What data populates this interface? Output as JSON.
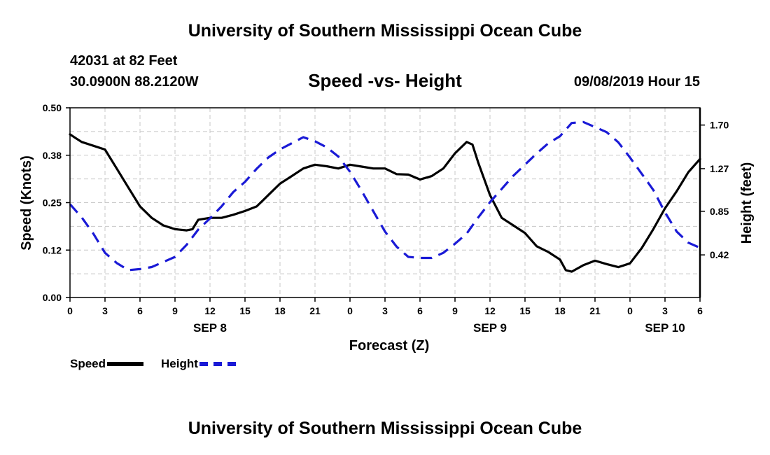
{
  "header": {
    "title_top": "University of Southern Mississippi Ocean Cube",
    "station": "42031 at 82 Feet",
    "coords": "30.0900N 88.2120W",
    "subtitle": "Speed -vs- Height",
    "datetime": "09/08/2019 Hour 15",
    "title_bottom": "University of Southern Mississippi Ocean Cube"
  },
  "legend": {
    "speed_label": "Speed",
    "height_label": "Height"
  },
  "chart_data": {
    "type": "line",
    "title": "Speed -vs- Height",
    "xlabel": "Forecast (Z)",
    "ylabel": "Speed (Knots)",
    "y2label": "Height (feet)",
    "ylim": [
      0,
      0.5
    ],
    "y2lim": [
      0.0,
      1.87
    ],
    "grid": true,
    "x_unit": "hours since 2019-09-08 00Z",
    "xlim": [
      0,
      54
    ],
    "x_ticks": [
      0,
      3,
      6,
      9,
      12,
      15,
      18,
      21,
      24,
      27,
      30,
      33,
      36,
      39,
      42,
      45,
      48,
      51,
      54
    ],
    "x_tick_labels": [
      "0",
      "3",
      "6",
      "9",
      "12",
      "15",
      "18",
      "21",
      "0",
      "3",
      "6",
      "9",
      "12",
      "15",
      "18",
      "21",
      "0",
      "3",
      "6"
    ],
    "date_labels": [
      {
        "x": 12,
        "label": "SEP 8"
      },
      {
        "x": 36,
        "label": "SEP 9"
      },
      {
        "x": 51,
        "label": "SEP 10"
      }
    ],
    "y_ticks": [
      "0.00",
      "0.12",
      "0.25",
      "0.38",
      "0.50"
    ],
    "y_tick_values": [
      0,
      0.125,
      0.25,
      0.375,
      0.5
    ],
    "y2_ticks": [
      "0.42",
      "0.85",
      "1.27",
      "1.70"
    ],
    "y2_tick_values": [
      0.42,
      0.85,
      1.27,
      1.7
    ],
    "series": [
      {
        "name": "Speed",
        "axis": "left",
        "color": "#000000",
        "style": "solid",
        "x": [
          0,
          0.5,
          1,
          2,
          3,
          4,
          5,
          6,
          7,
          8,
          9,
          10,
          10.5,
          11,
          12,
          13,
          14,
          15,
          16,
          17,
          18,
          19,
          20,
          21,
          22,
          23,
          24,
          25,
          26,
          27,
          28,
          29,
          30,
          31,
          32,
          33,
          34,
          34.5,
          35,
          36,
          37,
          38,
          39,
          40,
          41,
          42,
          42.5,
          43,
          44,
          45,
          46,
          47,
          48,
          49,
          50,
          51,
          52,
          53,
          54
        ],
        "values": [
          0.43,
          0.42,
          0.41,
          0.4,
          0.39,
          0.34,
          0.29,
          0.24,
          0.21,
          0.19,
          0.18,
          0.177,
          0.18,
          0.205,
          0.21,
          0.21,
          0.218,
          0.228,
          0.24,
          0.27,
          0.3,
          0.32,
          0.34,
          0.35,
          0.346,
          0.34,
          0.35,
          0.345,
          0.34,
          0.34,
          0.325,
          0.324,
          0.311,
          0.32,
          0.34,
          0.38,
          0.41,
          0.403,
          0.355,
          0.27,
          0.21,
          0.19,
          0.17,
          0.135,
          0.12,
          0.1,
          0.072,
          0.068,
          0.085,
          0.097,
          0.088,
          0.08,
          0.09,
          0.13,
          0.18,
          0.235,
          0.28,
          0.33,
          0.365
        ]
      },
      {
        "name": "Height",
        "axis": "right",
        "color": "#1a1ad6",
        "style": "dashed",
        "x": [
          0,
          1,
          2,
          3,
          4,
          5,
          6,
          7,
          8,
          9,
          10,
          11,
          12,
          13,
          14,
          15,
          16,
          17,
          18,
          19,
          20,
          21,
          22,
          23,
          24,
          25,
          26,
          27,
          28,
          29,
          30,
          31,
          32,
          33,
          34,
          35,
          36,
          37,
          38,
          39,
          40,
          41,
          42,
          43,
          44,
          45,
          46,
          47,
          48,
          49,
          50,
          51,
          52,
          53,
          54
        ],
        "values": [
          0.92,
          0.79,
          0.63,
          0.44,
          0.34,
          0.27,
          0.28,
          0.3,
          0.35,
          0.4,
          0.52,
          0.67,
          0.78,
          0.9,
          1.04,
          1.14,
          1.27,
          1.38,
          1.46,
          1.52,
          1.58,
          1.54,
          1.48,
          1.39,
          1.24,
          1.05,
          0.85,
          0.65,
          0.5,
          0.4,
          0.39,
          0.39,
          0.44,
          0.53,
          0.63,
          0.79,
          0.94,
          1.07,
          1.2,
          1.31,
          1.42,
          1.52,
          1.59,
          1.72,
          1.73,
          1.68,
          1.63,
          1.53,
          1.38,
          1.22,
          1.06,
          0.84,
          0.65,
          0.54,
          0.49
        ]
      }
    ]
  }
}
